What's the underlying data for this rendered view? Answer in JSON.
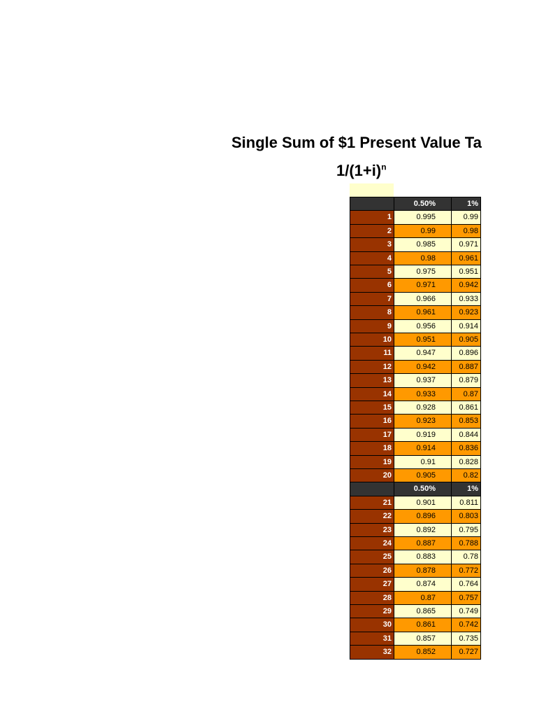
{
  "header": {
    "title": "Single Sum of $1 Present Value Ta",
    "formula": "1/(1+i)",
    "formula_sup": "n"
  },
  "tables": [
    {
      "header": [
        "0.50%",
        "1%"
      ],
      "rows": [
        [
          1,
          0.995,
          0.99
        ],
        [
          2,
          0.99,
          0.98
        ],
        [
          3,
          0.985,
          0.971
        ],
        [
          4,
          0.98,
          0.961
        ],
        [
          5,
          0.975,
          0.951
        ],
        [
          6,
          0.971,
          0.942
        ],
        [
          7,
          0.966,
          0.933
        ],
        [
          8,
          0.961,
          0.923
        ],
        [
          9,
          0.956,
          0.914
        ],
        [
          10,
          0.951,
          0.905
        ],
        [
          11,
          0.947,
          0.896
        ],
        [
          12,
          0.942,
          0.887
        ],
        [
          13,
          0.937,
          0.879
        ],
        [
          14,
          0.933,
          0.87
        ],
        [
          15,
          0.928,
          0.861
        ],
        [
          16,
          0.923,
          0.853
        ],
        [
          17,
          0.919,
          0.844
        ],
        [
          18,
          0.914,
          0.836
        ],
        [
          19,
          0.91,
          0.828
        ],
        [
          20,
          0.905,
          0.82
        ]
      ]
    },
    {
      "header": [
        "0.50%",
        "1%"
      ],
      "rows": [
        [
          21,
          0.901,
          0.811
        ],
        [
          22,
          0.896,
          0.803
        ],
        [
          23,
          0.892,
          0.795
        ],
        [
          24,
          0.887,
          0.788
        ],
        [
          25,
          0.883,
          0.78
        ],
        [
          26,
          0.878,
          0.772
        ],
        [
          27,
          0.874,
          0.764
        ],
        [
          28,
          0.87,
          0.757
        ],
        [
          29,
          0.865,
          0.749
        ],
        [
          30,
          0.861,
          0.742
        ],
        [
          31,
          0.857,
          0.735
        ],
        [
          32,
          0.852,
          0.727
        ]
      ]
    }
  ]
}
